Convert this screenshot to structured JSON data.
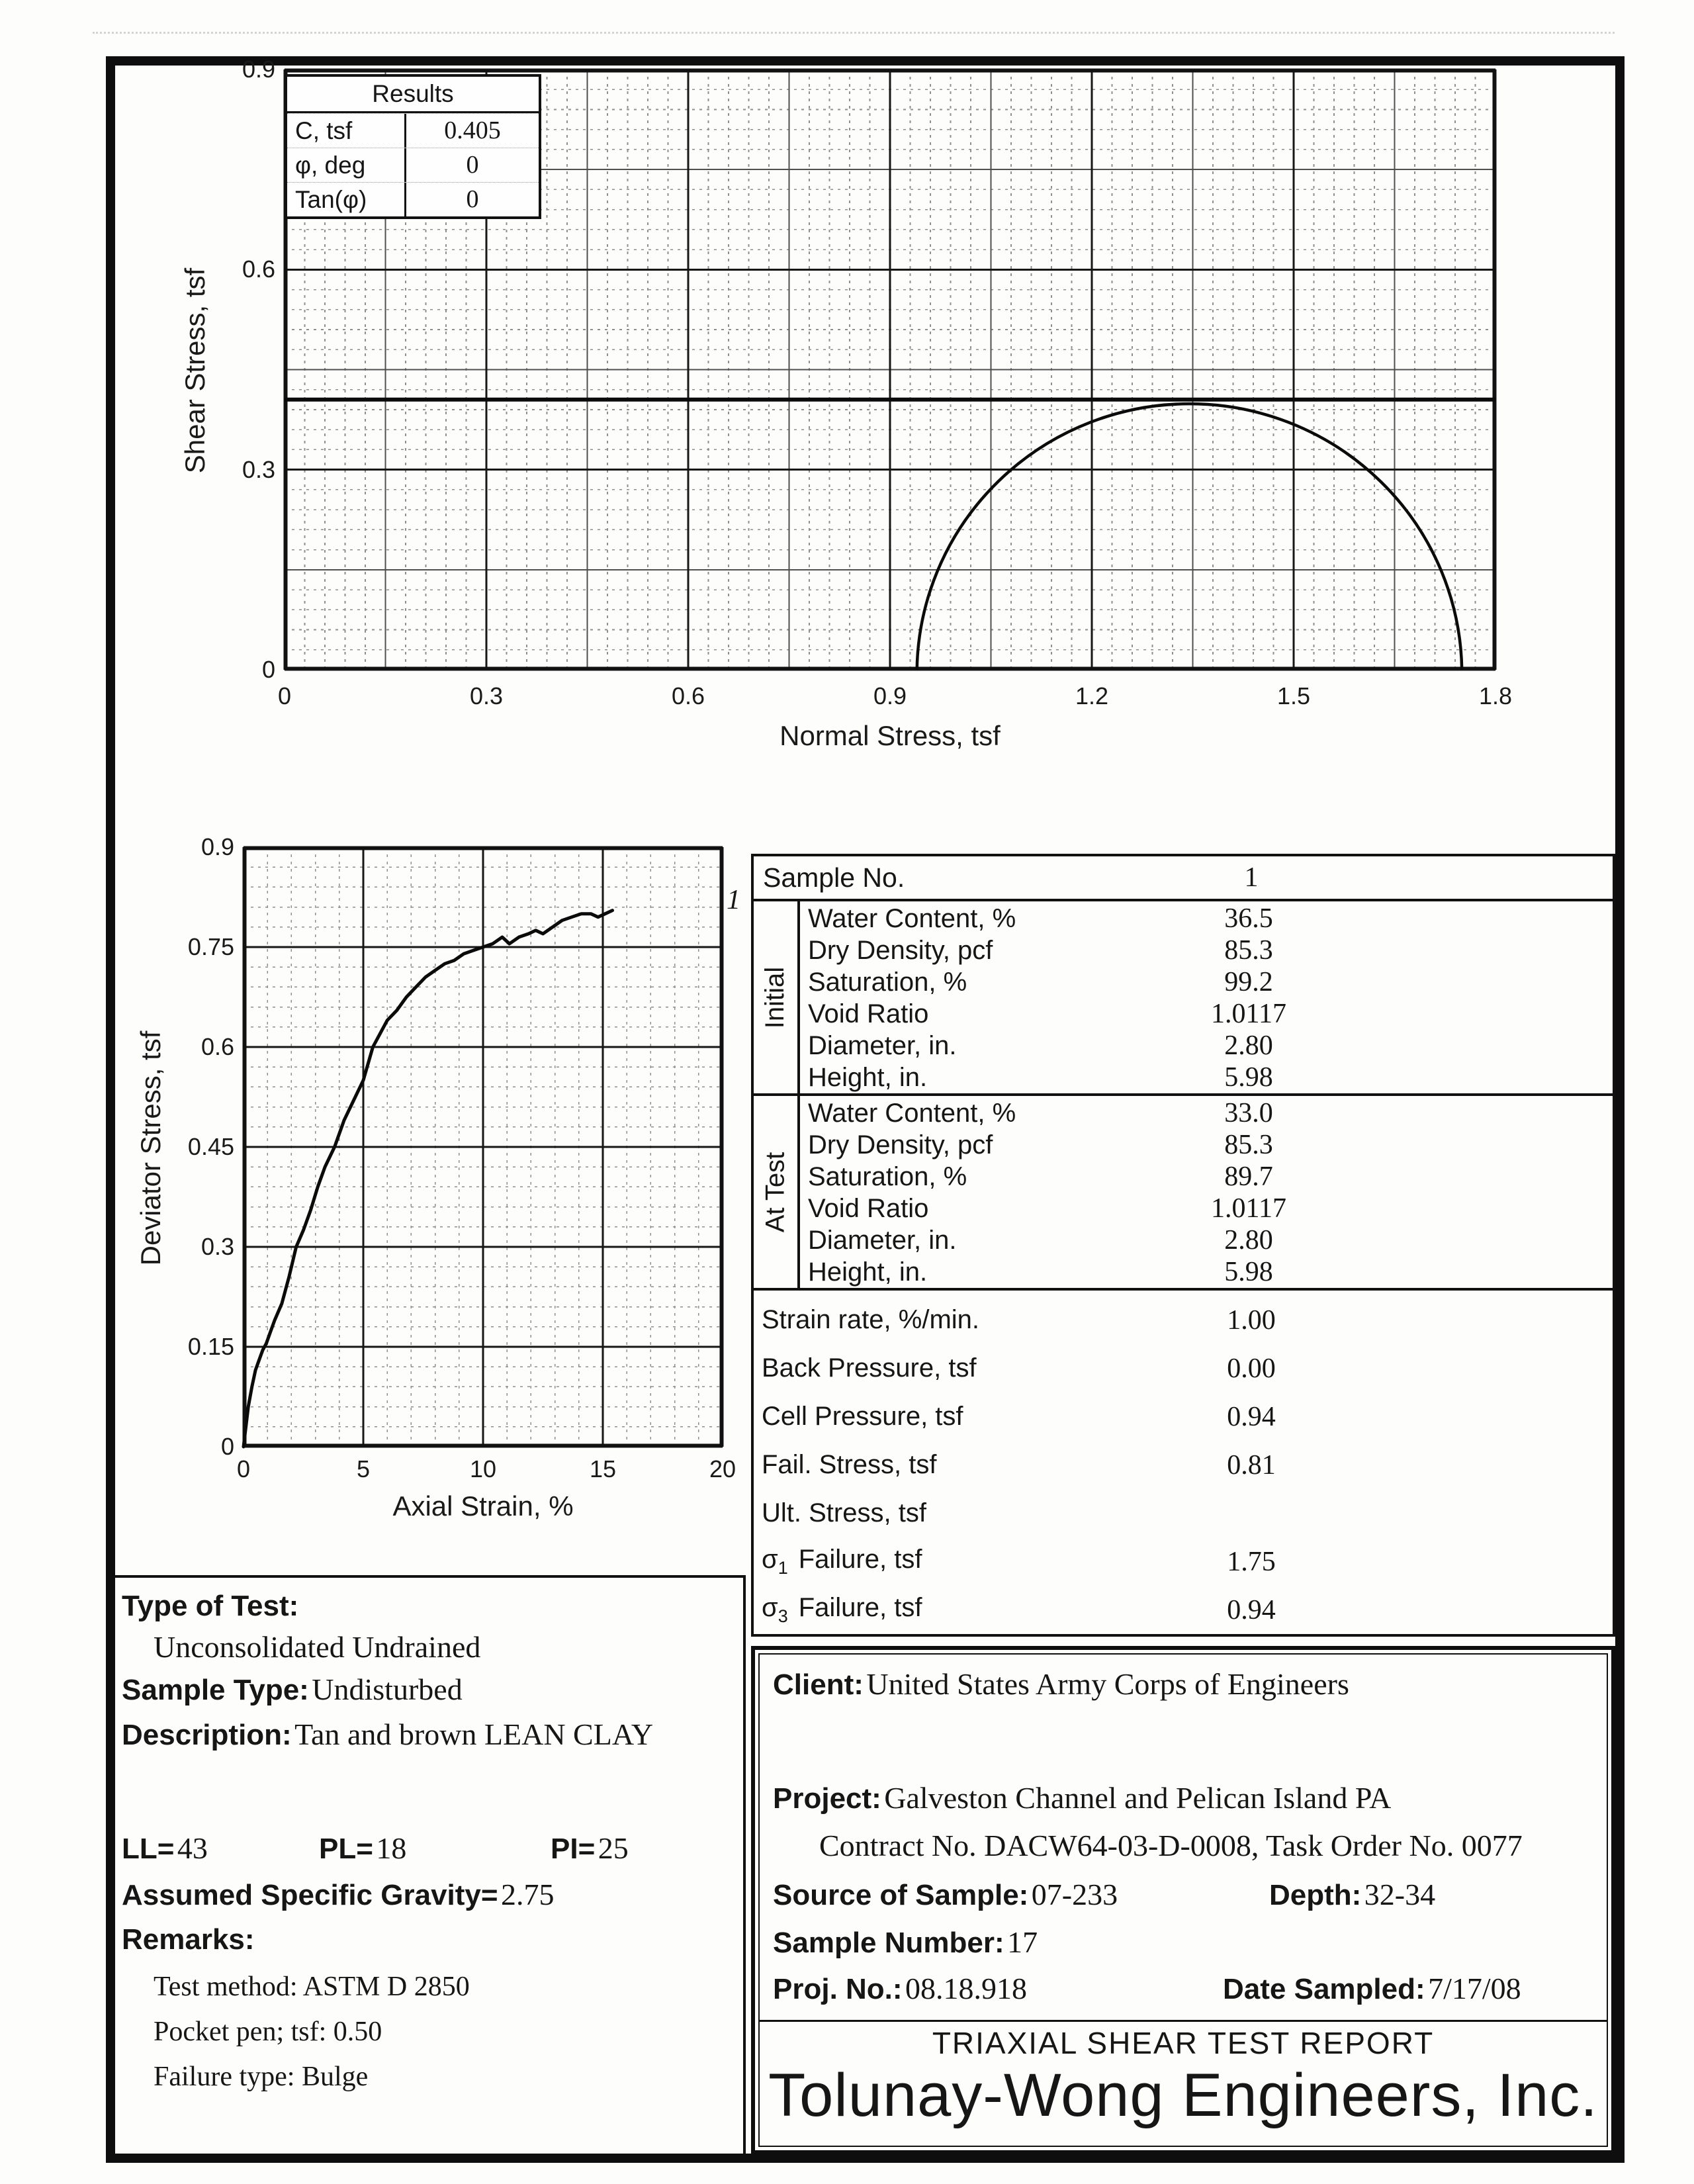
{
  "chart_data": [
    {
      "type": "line",
      "name": "mohr-circle-diagram",
      "title": "",
      "xlabel": "Normal Stress, tsf",
      "ylabel": "Shear Stress, tsf",
      "xlim": [
        0,
        1.8
      ],
      "ylim": [
        0,
        0.9
      ],
      "xticks": [
        "0",
        "0.3",
        "0.6",
        "0.9",
        "1.2",
        "1.5",
        "1.8"
      ],
      "yticks": [
        "0",
        "0.3",
        "0.6",
        "0.9"
      ],
      "x_minor_step": 0.03,
      "x_mid_step": 0.15,
      "x_major_step": 0.3,
      "y_minor_step": 0.03,
      "y_mid_step": 0.15,
      "y_major_step": 0.3,
      "grid": "fine engineering grid, dashed minor lines, legend none",
      "failure_envelope": {
        "shape": "horizontal line",
        "cohesion_C_tsf": 0.405,
        "phi_deg": 0
      },
      "mohr_circles": [
        {
          "sigma3_tsf": 0.94,
          "sigma1_tsf": 1.75,
          "center_tsf": 1.345,
          "radius_tsf": 0.405
        }
      ]
    },
    {
      "type": "line",
      "name": "deviator-stress-vs-axial-strain",
      "title": "",
      "xlabel": "Axial Strain, %",
      "ylabel": "Deviator Stress, tsf",
      "xlim": [
        0,
        20
      ],
      "ylim": [
        0,
        0.9
      ],
      "xticks": [
        "0",
        "5",
        "10",
        "15",
        "20"
      ],
      "yticks": [
        "0",
        "0.15",
        "0.3",
        "0.45",
        "0.6",
        "0.75",
        "0.9"
      ],
      "x_minor_step": 1,
      "x_major_step": 5,
      "y_minor_step": 0.03,
      "y_major_step": 0.15,
      "series": [
        {
          "name": "1",
          "points": [
            [
              0,
              0
            ],
            [
              0.1,
              0.03
            ],
            [
              0.2,
              0.06
            ],
            [
              0.35,
              0.09
            ],
            [
              0.5,
              0.115
            ],
            [
              0.65,
              0.13
            ],
            [
              0.8,
              0.145
            ],
            [
              0.95,
              0.155
            ],
            [
              1.1,
              0.17
            ],
            [
              1.3,
              0.19
            ],
            [
              1.6,
              0.215
            ],
            [
              1.9,
              0.255
            ],
            [
              2.2,
              0.3
            ],
            [
              2.5,
              0.325
            ],
            [
              2.8,
              0.355
            ],
            [
              3.1,
              0.39
            ],
            [
              3.4,
              0.42
            ],
            [
              3.8,
              0.45
            ],
            [
              4.2,
              0.49
            ],
            [
              4.6,
              0.52
            ],
            [
              5,
              0.55
            ],
            [
              5.4,
              0.6
            ],
            [
              5.7,
              0.62
            ],
            [
              6,
              0.64
            ],
            [
              6.4,
              0.655
            ],
            [
              6.8,
              0.675
            ],
            [
              7.2,
              0.69
            ],
            [
              7.6,
              0.705
            ],
            [
              8,
              0.715
            ],
            [
              8.4,
              0.725
            ],
            [
              8.8,
              0.73
            ],
            [
              9.2,
              0.74
            ],
            [
              9.6,
              0.745
            ],
            [
              10,
              0.75
            ],
            [
              10.4,
              0.755
            ],
            [
              10.8,
              0.765
            ],
            [
              11.1,
              0.755
            ],
            [
              11.5,
              0.765
            ],
            [
              11.9,
              0.77
            ],
            [
              12.2,
              0.775
            ],
            [
              12.5,
              0.77
            ],
            [
              12.9,
              0.78
            ],
            [
              13.3,
              0.79
            ],
            [
              13.7,
              0.795
            ],
            [
              14.1,
              0.8
            ],
            [
              14.5,
              0.8
            ],
            [
              14.8,
              0.795
            ],
            [
              15.1,
              0.8
            ],
            [
              15.4,
              0.805
            ]
          ]
        }
      ]
    }
  ],
  "results_box": {
    "title": "Results",
    "rows": [
      {
        "label": "C, tsf",
        "value": "0.405"
      },
      {
        "label": "φ, deg",
        "value": "0"
      },
      {
        "label": "Tan(φ)",
        "value": "0"
      }
    ]
  },
  "sample_table": {
    "header": {
      "label": "Sample No.",
      "value": "1"
    },
    "groups": [
      {
        "name": "Initial",
        "rows": [
          {
            "label": "Water Content, %",
            "value": "36.5"
          },
          {
            "label": "Dry Density, pcf",
            "value": "85.3"
          },
          {
            "label": "Saturation, %",
            "value": "99.2"
          },
          {
            "label": "Void Ratio",
            "value": "1.0117"
          },
          {
            "label": "Diameter, in.",
            "value": "2.80"
          },
          {
            "label": "Height, in.",
            "value": "5.98"
          }
        ]
      },
      {
        "name": "At Test",
        "rows": [
          {
            "label": "Water Content, %",
            "value": "33.0"
          },
          {
            "label": "Dry Density, pcf",
            "value": "85.3"
          },
          {
            "label": "Saturation, %",
            "value": "89.7"
          },
          {
            "label": "Void Ratio",
            "value": "1.0117"
          },
          {
            "label": "Diameter, in.",
            "value": "2.80"
          },
          {
            "label": "Height, in.",
            "value": "5.98"
          }
        ]
      }
    ],
    "params": [
      {
        "label": "Strain rate, %/min.",
        "value": "1.00"
      },
      {
        "label": "Back Pressure, tsf",
        "value": "0.00"
      },
      {
        "label": "Cell Pressure, tsf",
        "value": "0.94"
      },
      {
        "label": "Fail. Stress, tsf",
        "value": "0.81"
      },
      {
        "label": "Ult. Stress, tsf",
        "value": ""
      },
      {
        "sym": "σ",
        "sub": "1",
        "label": "Failure, tsf",
        "value": "1.75"
      },
      {
        "sym": "σ",
        "sub": "3",
        "label": "Failure, tsf",
        "value": "0.94"
      }
    ]
  },
  "test_info": {
    "type_of_test_label": "Type of Test:",
    "type_of_test": "Unconsolidated Undrained",
    "sample_type_label": "Sample Type:",
    "sample_type": "Undisturbed",
    "description_label": "Description:",
    "description": "Tan and brown LEAN CLAY",
    "ll_label": "LL=",
    "ll_value": "43",
    "pl_label": "PL=",
    "pl_value": "18",
    "pi_label": "PI=",
    "pi_value": "25",
    "specific_gravity_label": "Assumed Specific Gravity=",
    "specific_gravity": "2.75",
    "remarks_label": "Remarks:",
    "remarks": [
      "Test method: ASTM D 2850",
      "Pocket pen; tsf: 0.50",
      "Failure type: Bulge"
    ]
  },
  "project_box": {
    "client_label": "Client:",
    "client": "United States Army Corps of Engineers",
    "project_label": "Project:",
    "project": "Galveston Channel and Pelican Island PA",
    "contract_line": "Contract No. DACW64-03-D-0008, Task Order No. 0077",
    "source_label": "Source of Sample:",
    "source": "07-233",
    "depth_label": "Depth:",
    "depth": "32-34",
    "sample_number_label": "Sample Number:",
    "sample_number": "17",
    "proj_no_label": "Proj. No.:",
    "proj_no": "08.18.918",
    "date_sampled_label": "Date Sampled:",
    "date_sampled": "7/17/08",
    "report_title": "TRIAXIAL SHEAR TEST REPORT",
    "company_name": "Tolunay-Wong Engineers, Inc."
  }
}
